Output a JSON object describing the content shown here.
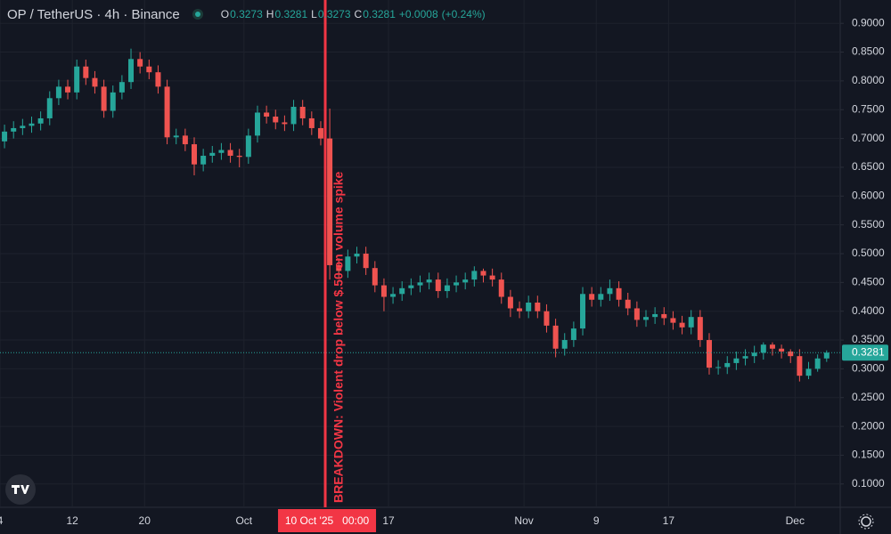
{
  "chart_data": {
    "type": "candlestick",
    "title": "OP / TetherUS · 4h · Binance",
    "legend": {
      "open_label": "O",
      "open": 0.3273,
      "high_label": "H",
      "high": 0.3281,
      "low_label": "L",
      "low": 0.3273,
      "close_label": "C",
      "close": 0.3281,
      "change": {
        "value": 0.0008,
        "label": "+0.0008"
      },
      "change_pct": {
        "value": 0.24,
        "label": "(+0.24%)"
      }
    },
    "up_color": "#26a69a",
    "down_color": "#ef5350",
    "grid": true,
    "xlim": [
      "2025-09-04",
      "2025-12-06"
    ],
    "ylim": [
      0.0595,
      0.9405
    ],
    "yticks": [
      {
        "value": 0.1,
        "label": "0.1000"
      },
      {
        "value": 0.15,
        "label": "0.1500"
      },
      {
        "value": 0.2,
        "label": "0.2000"
      },
      {
        "value": 0.25,
        "label": "0.2500"
      },
      {
        "value": 0.3,
        "label": "0.3000"
      },
      {
        "value": 0.35,
        "label": "0.3500"
      },
      {
        "value": 0.4,
        "label": "0.4000"
      },
      {
        "value": 0.45,
        "label": "0.4500"
      },
      {
        "value": 0.5,
        "label": "0.5000"
      },
      {
        "value": 0.55,
        "label": "0.5500"
      },
      {
        "value": 0.6,
        "label": "0.6000"
      },
      {
        "value": 0.65,
        "label": "0.6500"
      },
      {
        "value": 0.7,
        "label": "0.7000"
      },
      {
        "value": 0.75,
        "label": "0.7500"
      },
      {
        "value": 0.8,
        "label": "0.8000"
      },
      {
        "value": 0.85,
        "label": "0.8500"
      },
      {
        "value": 0.9,
        "label": "0.9000"
      }
    ],
    "xticks": [
      {
        "value": "2025-09-04",
        "label": "4"
      },
      {
        "value": "2025-09-12",
        "label": "12"
      },
      {
        "value": "2025-09-20",
        "label": "20"
      },
      {
        "value": "2025-10-01",
        "label": "Oct"
      },
      {
        "value": "2025-10-17",
        "label": "17"
      },
      {
        "value": "2025-11-01",
        "label": "Nov"
      },
      {
        "value": "2025-11-09",
        "label": "9"
      },
      {
        "value": "2025-11-17",
        "label": "17"
      },
      {
        "value": "2025-12-01",
        "label": "Dec"
      }
    ],
    "crosshair": {
      "value": "2025-10-10",
      "label": "10 Oct '25   00:00"
    },
    "annotation": "BREAKDOWN: Violent drop below $.50 on volume spike",
    "last_price": 0.3281,
    "x": [
      "2025-09-04",
      "2025-09-05",
      "2025-09-06",
      "2025-09-07",
      "2025-09-08",
      "2025-09-09",
      "2025-09-10",
      "2025-09-11",
      "2025-09-12",
      "2025-09-13",
      "2025-09-14",
      "2025-09-15",
      "2025-09-16",
      "2025-09-17",
      "2025-09-18",
      "2025-09-19",
      "2025-09-20",
      "2025-09-21",
      "2025-09-22",
      "2025-09-23",
      "2025-09-24",
      "2025-09-25",
      "2025-09-26",
      "2025-09-27",
      "2025-09-28",
      "2025-09-29",
      "2025-09-30",
      "2025-10-01",
      "2025-10-02",
      "2025-10-03",
      "2025-10-04",
      "2025-10-05",
      "2025-10-06",
      "2025-10-07",
      "2025-10-08",
      "2025-10-09",
      "2025-10-10",
      "2025-10-11",
      "2025-10-12",
      "2025-10-13",
      "2025-10-14",
      "2025-10-15",
      "2025-10-16",
      "2025-10-17",
      "2025-10-18",
      "2025-10-19",
      "2025-10-20",
      "2025-10-21",
      "2025-10-22",
      "2025-10-23",
      "2025-10-24",
      "2025-10-25",
      "2025-10-26",
      "2025-10-27",
      "2025-10-28",
      "2025-10-29",
      "2025-10-30",
      "2025-10-31",
      "2025-11-01",
      "2025-11-02",
      "2025-11-03",
      "2025-11-04",
      "2025-11-05",
      "2025-11-06",
      "2025-11-07",
      "2025-11-08",
      "2025-11-09",
      "2025-11-10",
      "2025-11-11",
      "2025-11-12",
      "2025-11-13",
      "2025-11-14",
      "2025-11-15",
      "2025-11-16",
      "2025-11-17",
      "2025-11-18",
      "2025-11-19",
      "2025-11-20",
      "2025-11-21",
      "2025-11-22",
      "2025-11-23",
      "2025-11-24",
      "2025-11-25",
      "2025-11-26",
      "2025-11-27",
      "2025-11-28",
      "2025-11-29",
      "2025-11-30",
      "2025-12-01",
      "2025-12-02",
      "2025-12-03",
      "2025-12-04"
    ],
    "ohlc": [
      [
        0.695,
        0.724,
        0.683,
        0.712
      ],
      [
        0.712,
        0.73,
        0.7,
        0.718
      ],
      [
        0.718,
        0.734,
        0.706,
        0.722
      ],
      [
        0.722,
        0.738,
        0.71,
        0.726
      ],
      [
        0.726,
        0.747,
        0.714,
        0.735
      ],
      [
        0.735,
        0.782,
        0.723,
        0.77
      ],
      [
        0.77,
        0.802,
        0.758,
        0.79
      ],
      [
        0.79,
        0.802,
        0.768,
        0.78
      ],
      [
        0.78,
        0.837,
        0.768,
        0.825
      ],
      [
        0.825,
        0.837,
        0.793,
        0.805
      ],
      [
        0.805,
        0.817,
        0.778,
        0.79
      ],
      [
        0.79,
        0.802,
        0.736,
        0.748
      ],
      [
        0.748,
        0.792,
        0.736,
        0.78
      ],
      [
        0.78,
        0.81,
        0.768,
        0.798
      ],
      [
        0.798,
        0.856,
        0.786,
        0.838
      ],
      [
        0.838,
        0.85,
        0.813,
        0.825
      ],
      [
        0.825,
        0.837,
        0.803,
        0.815
      ],
      [
        0.815,
        0.827,
        0.778,
        0.79
      ],
      [
        0.79,
        0.802,
        0.69,
        0.702
      ],
      [
        0.702,
        0.717,
        0.69,
        0.705
      ],
      [
        0.705,
        0.717,
        0.678,
        0.69
      ],
      [
        0.69,
        0.702,
        0.636,
        0.655
      ],
      [
        0.655,
        0.682,
        0.643,
        0.67
      ],
      [
        0.67,
        0.687,
        0.658,
        0.675
      ],
      [
        0.675,
        0.692,
        0.663,
        0.68
      ],
      [
        0.68,
        0.692,
        0.658,
        0.67
      ],
      [
        0.67,
        0.682,
        0.65,
        0.668
      ],
      [
        0.668,
        0.717,
        0.656,
        0.705
      ],
      [
        0.705,
        0.757,
        0.693,
        0.745
      ],
      [
        0.745,
        0.757,
        0.726,
        0.738
      ],
      [
        0.738,
        0.75,
        0.716,
        0.728
      ],
      [
        0.728,
        0.74,
        0.713,
        0.725
      ],
      [
        0.725,
        0.767,
        0.713,
        0.755
      ],
      [
        0.755,
        0.767,
        0.723,
        0.735
      ],
      [
        0.735,
        0.747,
        0.706,
        0.718
      ],
      [
        0.718,
        0.73,
        0.688,
        0.7
      ],
      [
        0.7,
        0.752,
        0.455,
        0.48
      ],
      [
        0.48,
        0.492,
        0.458,
        0.47
      ],
      [
        0.47,
        0.507,
        0.458,
        0.495
      ],
      [
        0.495,
        0.512,
        0.483,
        0.5
      ],
      [
        0.5,
        0.512,
        0.463,
        0.475
      ],
      [
        0.475,
        0.487,
        0.433,
        0.445
      ],
      [
        0.445,
        0.457,
        0.4,
        0.425
      ],
      [
        0.425,
        0.442,
        0.413,
        0.43
      ],
      [
        0.43,
        0.452,
        0.418,
        0.44
      ],
      [
        0.44,
        0.457,
        0.428,
        0.445
      ],
      [
        0.445,
        0.462,
        0.433,
        0.45
      ],
      [
        0.45,
        0.467,
        0.438,
        0.455
      ],
      [
        0.455,
        0.467,
        0.423,
        0.435
      ],
      [
        0.435,
        0.457,
        0.423,
        0.445
      ],
      [
        0.445,
        0.462,
        0.433,
        0.45
      ],
      [
        0.45,
        0.467,
        0.438,
        0.455
      ],
      [
        0.455,
        0.478,
        0.443,
        0.47
      ],
      [
        0.47,
        0.474,
        0.45,
        0.462
      ],
      [
        0.462,
        0.474,
        0.443,
        0.455
      ],
      [
        0.455,
        0.467,
        0.413,
        0.425
      ],
      [
        0.425,
        0.437,
        0.39,
        0.405
      ],
      [
        0.405,
        0.417,
        0.388,
        0.4
      ],
      [
        0.4,
        0.427,
        0.388,
        0.415
      ],
      [
        0.415,
        0.427,
        0.388,
        0.4
      ],
      [
        0.4,
        0.412,
        0.363,
        0.375
      ],
      [
        0.375,
        0.387,
        0.32,
        0.335
      ],
      [
        0.335,
        0.362,
        0.323,
        0.35
      ],
      [
        0.35,
        0.382,
        0.338,
        0.37
      ],
      [
        0.37,
        0.442,
        0.358,
        0.43
      ],
      [
        0.43,
        0.442,
        0.408,
        0.42
      ],
      [
        0.42,
        0.442,
        0.408,
        0.43
      ],
      [
        0.43,
        0.455,
        0.418,
        0.44
      ],
      [
        0.44,
        0.452,
        0.408,
        0.42
      ],
      [
        0.42,
        0.432,
        0.393,
        0.405
      ],
      [
        0.405,
        0.417,
        0.373,
        0.385
      ],
      [
        0.385,
        0.402,
        0.373,
        0.39
      ],
      [
        0.39,
        0.407,
        0.378,
        0.395
      ],
      [
        0.395,
        0.407,
        0.376,
        0.388
      ],
      [
        0.388,
        0.4,
        0.368,
        0.38
      ],
      [
        0.38,
        0.392,
        0.36,
        0.372
      ],
      [
        0.372,
        0.402,
        0.36,
        0.39
      ],
      [
        0.39,
        0.402,
        0.338,
        0.35
      ],
      [
        0.35,
        0.362,
        0.29,
        0.302
      ],
      [
        0.302,
        0.315,
        0.29,
        0.303
      ],
      [
        0.303,
        0.322,
        0.291,
        0.31
      ],
      [
        0.31,
        0.33,
        0.298,
        0.318
      ],
      [
        0.318,
        0.334,
        0.306,
        0.322
      ],
      [
        0.322,
        0.34,
        0.31,
        0.328
      ],
      [
        0.328,
        0.346,
        0.316,
        0.342
      ],
      [
        0.342,
        0.346,
        0.323,
        0.335
      ],
      [
        0.335,
        0.342,
        0.318,
        0.33
      ],
      [
        0.33,
        0.334,
        0.31,
        0.322
      ],
      [
        0.322,
        0.334,
        0.278,
        0.288
      ],
      [
        0.288,
        0.312,
        0.282,
        0.3
      ],
      [
        0.3,
        0.325,
        0.295,
        0.318
      ],
      [
        0.318,
        0.332,
        0.312,
        0.3281
      ]
    ]
  }
}
